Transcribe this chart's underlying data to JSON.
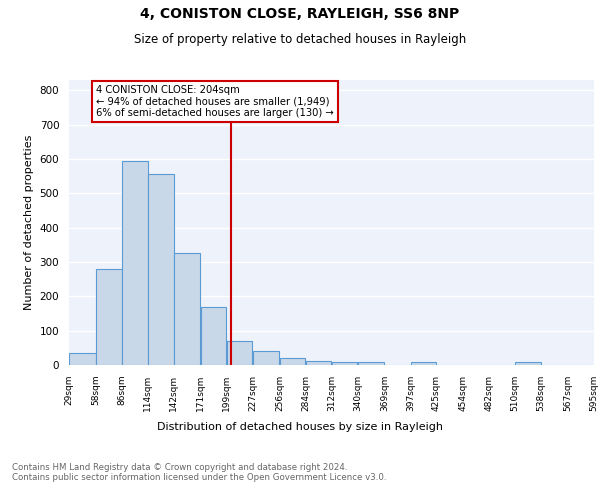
{
  "title": "4, CONISTON CLOSE, RAYLEIGH, SS6 8NP",
  "subtitle": "Size of property relative to detached houses in Rayleigh",
  "xlabel": "Distribution of detached houses by size in Rayleigh",
  "ylabel": "Number of detached properties",
  "bar_color": "#c8d8e8",
  "bar_edge_color": "#5b9bd5",
  "background_color": "#eef2fa",
  "grid_color": "white",
  "bins": [
    29,
    58,
    86,
    114,
    142,
    171,
    199,
    227,
    256,
    284,
    312,
    340,
    369,
    397,
    425,
    454,
    482,
    510,
    538,
    567,
    595
  ],
  "values": [
    35,
    280,
    595,
    555,
    325,
    170,
    70,
    40,
    20,
    12,
    8,
    8,
    0,
    10,
    0,
    0,
    0,
    10,
    0,
    0
  ],
  "property_size": 204,
  "property_line_color": "#cc0000",
  "annotation_text": "4 CONISTON CLOSE: 204sqm\n← 94% of detached houses are smaller (1,949)\n6% of semi-detached houses are larger (130) →",
  "annotation_box_color": "white",
  "annotation_box_edge_color": "#cc0000",
  "ylim": [
    0,
    830
  ],
  "yticks": [
    0,
    100,
    200,
    300,
    400,
    500,
    600,
    700,
    800
  ],
  "footer_text": "Contains HM Land Registry data © Crown copyright and database right 2024.\nContains public sector information licensed under the Open Government Licence v3.0.",
  "tick_labels": [
    "29sqm",
    "58sqm",
    "86sqm",
    "114sqm",
    "142sqm",
    "171sqm",
    "199sqm",
    "227sqm",
    "256sqm",
    "284sqm",
    "312sqm",
    "340sqm",
    "369sqm",
    "397sqm",
    "425sqm",
    "454sqm",
    "482sqm",
    "510sqm",
    "538sqm",
    "567sqm",
    "595sqm"
  ]
}
